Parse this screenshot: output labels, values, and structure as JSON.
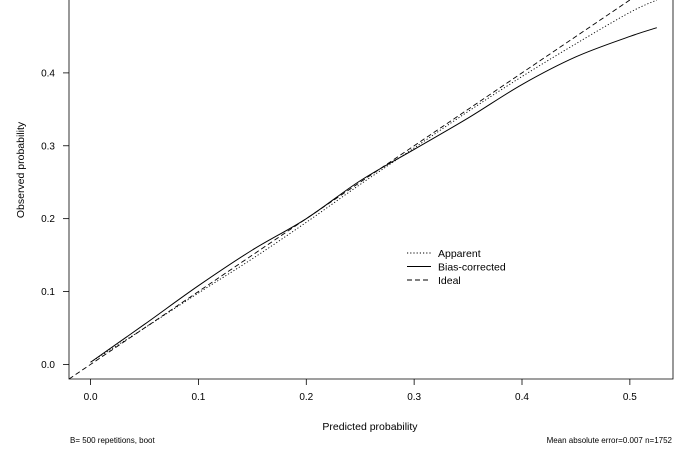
{
  "chart_data": {
    "type": "line",
    "xlabel": "Predicted probability",
    "ylabel": "Observed probability",
    "xlim": [
      -0.02,
      0.54
    ],
    "ylim": [
      -0.02,
      0.5
    ],
    "x_ticks": [
      0.0,
      0.1,
      0.2,
      0.3,
      0.4,
      0.5
    ],
    "x_tick_labels": [
      "0.0",
      "0.1",
      "0.2",
      "0.3",
      "0.4",
      "0.5"
    ],
    "y_ticks": [
      0.0,
      0.1,
      0.2,
      0.3,
      0.4
    ],
    "y_tick_labels": [
      "0.0",
      "0.1",
      "0.2",
      "0.3",
      "0.4"
    ],
    "grid": false,
    "legend_position": "center-right",
    "series": [
      {
        "name": "Apparent",
        "linestyle": "dotted",
        "color": "#000000",
        "points": [
          [
            0.0,
            0.003
          ],
          [
            0.05,
            0.05
          ],
          [
            0.1,
            0.098
          ],
          [
            0.15,
            0.145
          ],
          [
            0.2,
            0.195
          ],
          [
            0.25,
            0.247
          ],
          [
            0.3,
            0.297
          ],
          [
            0.35,
            0.347
          ],
          [
            0.4,
            0.395
          ],
          [
            0.45,
            0.44
          ],
          [
            0.5,
            0.483
          ],
          [
            0.525,
            0.5
          ]
        ]
      },
      {
        "name": "Bias-corrected",
        "linestyle": "solid",
        "color": "#000000",
        "points": [
          [
            0.0,
            0.003
          ],
          [
            0.05,
            0.055
          ],
          [
            0.1,
            0.108
          ],
          [
            0.15,
            0.157
          ],
          [
            0.2,
            0.2
          ],
          [
            0.25,
            0.252
          ],
          [
            0.3,
            0.295
          ],
          [
            0.35,
            0.338
          ],
          [
            0.4,
            0.384
          ],
          [
            0.45,
            0.422
          ],
          [
            0.5,
            0.45
          ],
          [
            0.525,
            0.462
          ]
        ]
      },
      {
        "name": "Ideal",
        "linestyle": "dashed",
        "color": "#000000",
        "points": [
          [
            -0.02,
            -0.02
          ],
          [
            0.5,
            0.5
          ]
        ]
      }
    ],
    "footnote_left": "B= 500 repetitions, boot",
    "footnote_right": "Mean absolute error=0.007 n=1752"
  }
}
